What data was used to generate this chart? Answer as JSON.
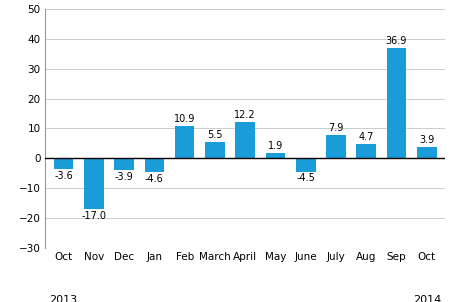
{
  "categories": [
    "Oct",
    "Nov",
    "Dec",
    "Jan",
    "Feb",
    "March",
    "April",
    "May",
    "June",
    "July",
    "Aug",
    "Sep",
    "Oct"
  ],
  "values": [
    -3.6,
    -17.0,
    -3.9,
    -4.6,
    10.9,
    5.5,
    12.2,
    1.9,
    -4.5,
    7.9,
    4.7,
    36.9,
    3.9
  ],
  "bar_color": "#1a9cd8",
  "ylim": [
    -30,
    50
  ],
  "yticks": [
    -30,
    -20,
    -10,
    0,
    10,
    20,
    30,
    40,
    50
  ],
  "tick_fontsize": 7.5,
  "year_fontsize": 8,
  "value_fontsize": 7.0,
  "background_color": "#ffffff",
  "grid_color": "#cccccc",
  "bar_width": 0.65
}
